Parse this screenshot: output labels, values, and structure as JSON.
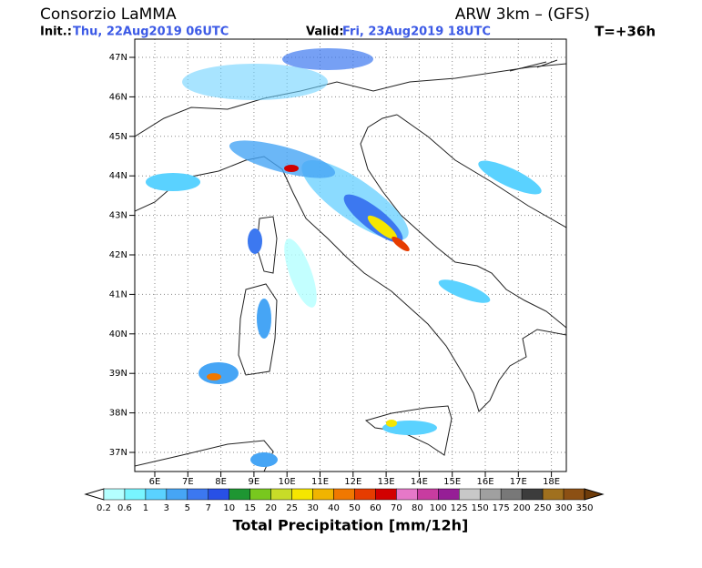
{
  "header": {
    "title": "Consorzio LaMMA",
    "model": "ARW 3km – (GFS)",
    "init_label": "Init.:",
    "init_value": "Thu, 22Aug2019 06UTC",
    "valid_label": "Valid:",
    "valid_value": "Fri, 23Aug2019 18UTC",
    "lead_time": "T=+36h"
  },
  "map": {
    "lat_labels": [
      "47N",
      "46N",
      "45N",
      "44N",
      "43N",
      "42N",
      "41N",
      "40N",
      "39N",
      "38N",
      "37N"
    ],
    "lon_labels": [
      "6E",
      "7E",
      "8E",
      "9E",
      "10E",
      "11E",
      "12E",
      "13E",
      "14E",
      "15E",
      "16E",
      "17E",
      "18E"
    ]
  },
  "legend": {
    "title": "Total Precipitation [mm/12h]",
    "levels": [
      0.2,
      0.6,
      1,
      3,
      5,
      7,
      10,
      15,
      20,
      25,
      30,
      40,
      50,
      60,
      70,
      80,
      100,
      125,
      150,
      175,
      200,
      250,
      300,
      350
    ],
    "colors": [
      "#ffffff",
      "#b4ffff",
      "#78f5ff",
      "#5ad2ff",
      "#46a5f5",
      "#3c78f0",
      "#2850e6",
      "#1e9632",
      "#78c81e",
      "#c8dc28",
      "#f5e600",
      "#f0b400",
      "#f07800",
      "#e63c00",
      "#d20000",
      "#e678c8",
      "#c83ca0",
      "#961e96",
      "#c8c8c8",
      "#a0a0a0",
      "#787878",
      "#3c3c3c",
      "#a0701e",
      "#8c5014",
      "#6e3c0a"
    ]
  }
}
